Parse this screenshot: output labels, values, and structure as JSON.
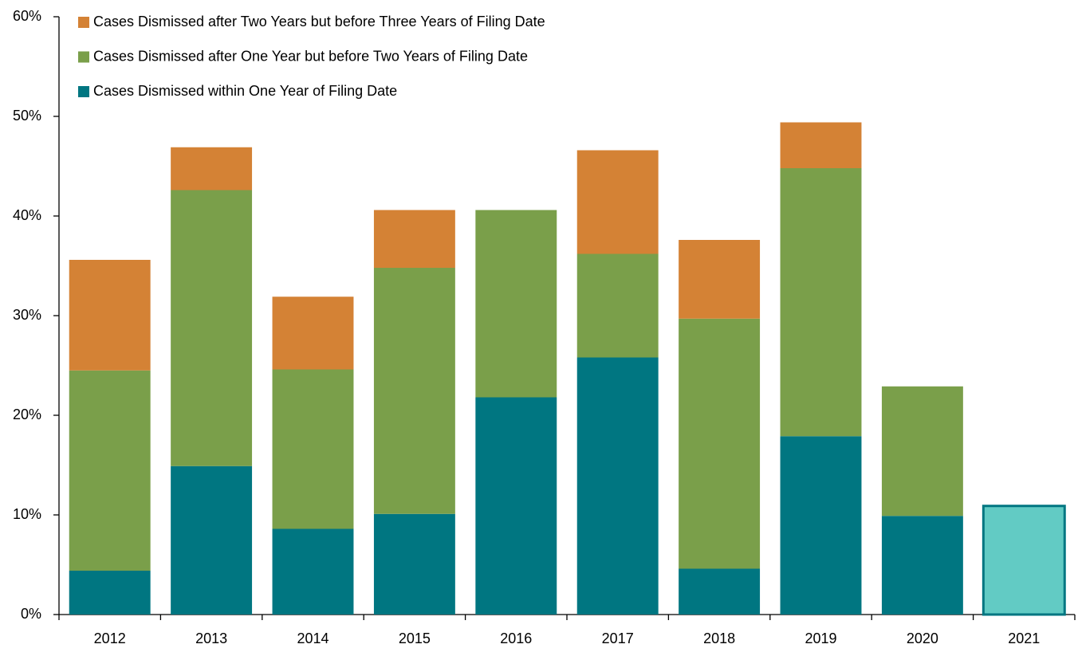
{
  "chart_data": {
    "type": "stacked_bar",
    "categories": [
      "2012",
      "2013",
      "2014",
      "2015",
      "2016",
      "2017",
      "2018",
      "2019",
      "2020",
      "2021"
    ],
    "series": [
      {
        "name": "Cases Dismissed within One Year of Filing Date",
        "color": "#007681",
        "colors": [
          "#007681",
          "#007681",
          "#007681",
          "#007681",
          "#007681",
          "#007681",
          "#007681",
          "#007681",
          "#007681",
          "#62cbc4"
        ],
        "values": [
          4.4,
          14.9,
          8.6,
          10.1,
          21.8,
          25.8,
          4.6,
          17.9,
          9.9,
          10.9
        ]
      },
      {
        "name": "Cases Dismissed after One Year but before Two Years of Filing Date",
        "color": "#7a9f4a",
        "values": [
          20.1,
          27.7,
          16.0,
          24.7,
          18.8,
          10.4,
          25.1,
          26.9,
          13.0,
          null
        ]
      },
      {
        "name": "Cases Dismissed after Two Years but before Three Years of Filing Date",
        "color": "#d48235",
        "values": [
          11.1,
          4.3,
          7.3,
          5.8,
          null,
          10.4,
          7.9,
          4.6,
          null,
          null
        ]
      }
    ],
    "ylim": [
      0,
      60
    ],
    "yticks": [
      {
        "value": 0,
        "label": "0%"
      },
      {
        "value": 10,
        "label": "10%"
      },
      {
        "value": 20,
        "label": "20%"
      },
      {
        "value": 30,
        "label": "30%"
      },
      {
        "value": 40,
        "label": "40%"
      },
      {
        "value": 50,
        "label": "50%"
      },
      {
        "value": 60,
        "label": "60%"
      }
    ],
    "grid": false,
    "legend": "top-left"
  }
}
